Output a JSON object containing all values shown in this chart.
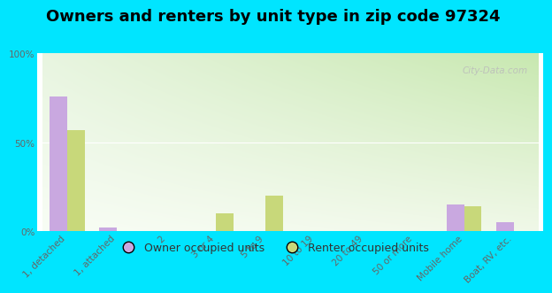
{
  "title": "Owners and renters by unit type in zip code 97324",
  "categories": [
    "1, detached",
    "1, attached",
    "2",
    "3 or 4",
    "5 to 9",
    "10 to 19",
    "20 to 49",
    "50 or more",
    "Mobile home",
    "Boat, RV, etc."
  ],
  "owner_values": [
    76,
    2,
    0,
    0,
    0,
    0,
    0,
    0,
    15,
    5
  ],
  "renter_values": [
    57,
    0,
    0,
    10,
    20,
    0,
    0,
    0,
    14,
    0
  ],
  "owner_color": "#c9a8e0",
  "renter_color": "#c8d87a",
  "bg_color": "#00e5ff",
  "plot_bg_top_left": "#f5faf2",
  "plot_bg_top_right": "#d8ecc8",
  "plot_bg_bottom": "#f8fcf5",
  "ylim": [
    0,
    100
  ],
  "yticks": [
    0,
    50,
    100
  ],
  "ytick_labels": [
    "0%",
    "50%",
    "100%"
  ],
  "bar_width": 0.35,
  "title_fontsize": 13,
  "tick_fontsize": 7.5,
  "legend_fontsize": 9,
  "watermark_text": "City-Data.com"
}
